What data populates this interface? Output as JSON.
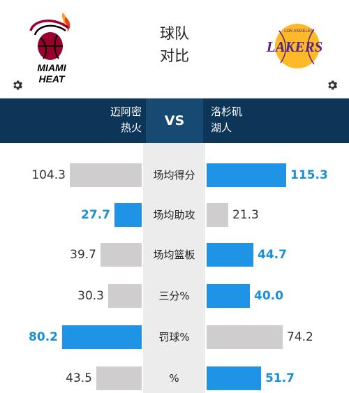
{
  "header": {
    "title_line1": "球队",
    "title_line2": "对比",
    "left_logo_text_1": "MIAMI",
    "left_logo_text_2": "HEAT",
    "right_logo_text": "LAKERS",
    "right_logo_small": "LOS ANGELES"
  },
  "teams": {
    "left": {
      "city": "迈阿密",
      "name": "热火"
    },
    "vs": "VS",
    "right": {
      "city": "洛杉矶",
      "name": "湖人"
    }
  },
  "stats": [
    {
      "label": "场均得分",
      "left": "104.3",
      "right": "115.3",
      "winner": "right",
      "left_bar": 0.905,
      "right_bar": 1.0
    },
    {
      "label": "场均助攻",
      "left": "27.7",
      "right": "21.3",
      "winner": "left",
      "left_bar": 0.34,
      "right_bar": 0.27
    },
    {
      "label": "场均篮板",
      "left": "39.7",
      "right": "44.7",
      "winner": "right",
      "left_bar": 0.52,
      "right_bar": 0.59
    },
    {
      "label": "三分%",
      "left": "30.3",
      "right": "40.0",
      "winner": "right",
      "left_bar": 0.42,
      "right_bar": 0.54
    },
    {
      "label": "罚球%",
      "left": "80.2",
      "right": "74.2",
      "winner": "left",
      "left_bar": 1.0,
      "right_bar": 0.96
    },
    {
      "label": "%",
      "left": "43.5",
      "right": "51.7",
      "winner": "right",
      "left_bar": 0.57,
      "right_bar": 0.68
    }
  ],
  "colors": {
    "header_bg": "#0d3557",
    "vs_bg": "#174a73",
    "blue_bar": "#1f94e6",
    "gray_bar": "#cfcdce"
  }
}
